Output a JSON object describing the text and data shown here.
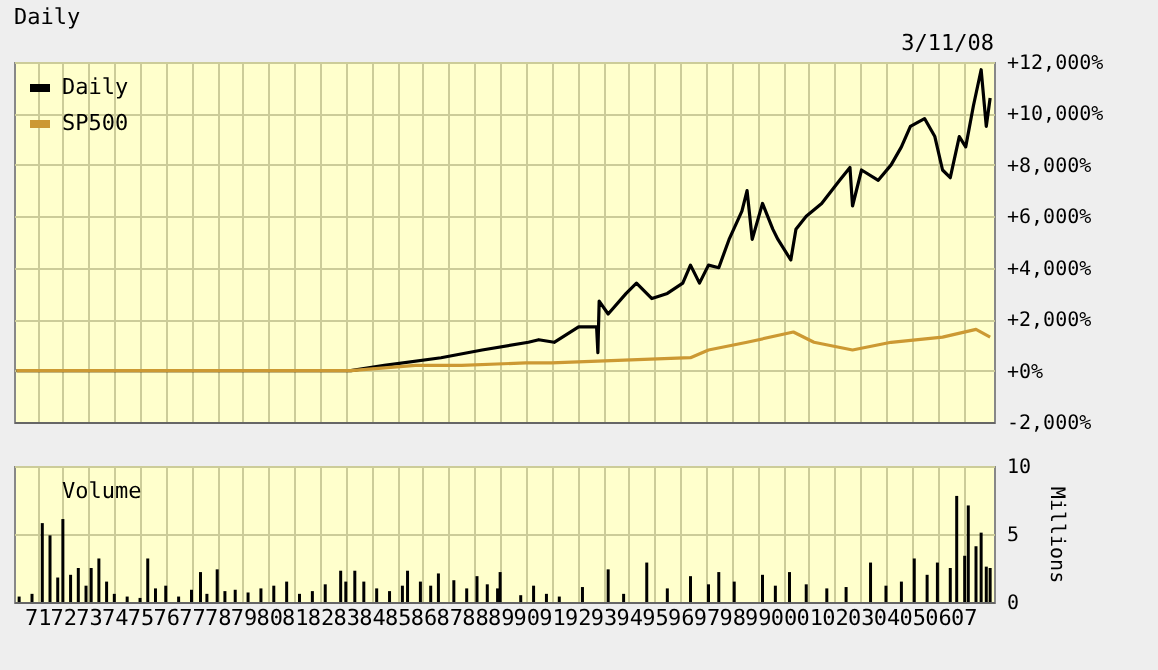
{
  "chart_data": [
    {
      "type": "line",
      "title": "Daily",
      "annotations": [
        "3/11/08"
      ],
      "series": [
        {
          "name": "Daily",
          "color": "#000000",
          "x": [
            1970.2,
            1972.0,
            1974.0,
            1976.0,
            1978.0,
            1980.0,
            1982.0,
            1983.2,
            1984.5,
            1986.7,
            1988.3,
            1990.1,
            1990.5,
            1991.1,
            1992.05,
            1992.75,
            1992.8,
            1992.85,
            1993.2,
            1993.9,
            1994.3,
            1994.9,
            1995.5,
            1996.1,
            1996.4,
            1996.75,
            1997.1,
            1997.5,
            1997.9,
            1998.4,
            1998.6,
            1998.8,
            1999.2,
            1999.6,
            1999.8,
            2000.3,
            2000.5,
            2000.9,
            2001.5,
            2002.2,
            2002.6,
            2002.7,
            2003.05,
            2003.7,
            2004.2,
            2004.6,
            2004.95,
            2005.5,
            2005.9,
            2006.2,
            2006.5,
            2006.85,
            2007.1,
            2007.4,
            2007.7,
            2007.9,
            2008.05
          ],
          "values": [
            0,
            0,
            0,
            0,
            0,
            0,
            0,
            0,
            200,
            500,
            800,
            1100,
            1200,
            1100,
            1700,
            1700,
            700,
            2700,
            2200,
            3000,
            3400,
            2800,
            3000,
            3400,
            4100,
            3400,
            4100,
            4000,
            5100,
            6200,
            7000,
            5100,
            6500,
            5500,
            5100,
            4300,
            5500,
            6000,
            6500,
            7400,
            7900,
            6400,
            7800,
            7400,
            8000,
            8700,
            9500,
            9800,
            9100,
            7800,
            7500,
            9100,
            8700,
            10300,
            11700,
            9500,
            10600
          ]
        },
        {
          "name": "SP500",
          "color": "#cc9933",
          "x": [
            1970.2,
            1972.0,
            1974.0,
            1976.0,
            1978.0,
            1980.0,
            1982.0,
            1983.2,
            1985.7,
            1987.5,
            1990.0,
            1991.0,
            1996.4,
            1997.1,
            1998.6,
            2000.4,
            2001.2,
            2002.7,
            2004.2,
            2006.2,
            2007.5,
            2008.05
          ],
          "values": [
            0,
            0,
            0,
            0,
            0,
            0,
            0,
            0,
            200,
            200,
            300,
            300,
            500,
            800,
            1100,
            1500,
            1100,
            800,
            1100,
            1300,
            1600,
            1300
          ]
        }
      ],
      "xlim": [
        1970.1,
        2008.2
      ],
      "xticks": [
        1971,
        1972,
        1973,
        1974,
        1975,
        1976,
        1977,
        1978,
        1979,
        1980,
        1981,
        1982,
        1983,
        1984,
        1985,
        1986,
        1987,
        1988,
        1989,
        1990,
        1991,
        1992,
        1993,
        1994,
        1995,
        1996,
        1997,
        1998,
        1999,
        2000,
        2001,
        2002,
        2003,
        2004,
        2005,
        2006,
        2007
      ],
      "ylim": [
        -2000,
        12000
      ],
      "yticks": [
        {
          "value": -2000,
          "label": "-2,000%"
        },
        {
          "value": 0,
          "label": "+0%"
        },
        {
          "value": 2000,
          "label": "+2,000%"
        },
        {
          "value": 4000,
          "label": "+4,000%"
        },
        {
          "value": 6000,
          "label": "+6,000%"
        },
        {
          "value": 8000,
          "label": "+8,000%"
        },
        {
          "value": 10000,
          "label": "+10,000%"
        },
        {
          "value": 12000,
          "label": "+12,000%"
        }
      ],
      "grid": true,
      "legend": "top left",
      "tick_labels": "y"
    },
    {
      "type": "bar",
      "ylabel": "Millions",
      "series": [
        {
          "name": "Volume",
          "color": "#000000",
          "x": [
            1970.3,
            1970.8,
            1971.2,
            1971.5,
            1971.8,
            1972.0,
            1972.3,
            1972.6,
            1972.9,
            1973.1,
            1973.4,
            1973.7,
            1974.0,
            1974.5,
            1975.0,
            1975.3,
            1975.6,
            1976.0,
            1976.5,
            1977.0,
            1977.35,
            1977.6,
            1978.0,
            1978.3,
            1978.7,
            1979.2,
            1979.7,
            1980.2,
            1980.7,
            1981.2,
            1981.7,
            1982.2,
            1982.8,
            1983.0,
            1983.35,
            1983.7,
            1984.2,
            1984.7,
            1985.2,
            1985.4,
            1985.9,
            1986.3,
            1986.6,
            1987.2,
            1987.7,
            1988.1,
            1988.5,
            1988.9,
            1989.0,
            1989.8,
            1990.3,
            1990.8,
            1991.3,
            1992.2,
            1993.2,
            1993.8,
            1994.7,
            1995.5,
            1996.4,
            1997.1,
            1997.5,
            1998.1,
            1999.2,
            1999.7,
            2000.25,
            2000.9,
            2001.7,
            2002.45,
            2003.4,
            2004.0,
            2004.6,
            2005.1,
            2005.6,
            2006.0,
            2006.5,
            2006.75,
            2007.06,
            2007.2,
            2007.5,
            2007.7,
            2007.9,
            2008.05
          ],
          "values": [
            0.4,
            0.6,
            5.8,
            4.9,
            1.8,
            6.1,
            2.0,
            2.5,
            1.2,
            2.5,
            3.2,
            1.5,
            0.6,
            0.4,
            0.3,
            3.2,
            1.0,
            1.2,
            0.4,
            0.9,
            2.2,
            0.6,
            2.4,
            0.8,
            0.9,
            0.7,
            1.0,
            1.2,
            1.5,
            0.6,
            0.8,
            1.3,
            2.3,
            1.5,
            2.3,
            1.5,
            1.0,
            0.8,
            1.2,
            2.3,
            1.5,
            1.2,
            2.1,
            1.6,
            1.0,
            1.9,
            1.3,
            1.0,
            2.2,
            0.5,
            1.2,
            0.6,
            0.4,
            1.1,
            2.4,
            0.6,
            2.9,
            1.0,
            1.9,
            1.3,
            2.2,
            1.5,
            2.0,
            1.2,
            2.2,
            1.3,
            1.0,
            1.1,
            2.9,
            1.2,
            1.5,
            3.2,
            2.0,
            2.9,
            2.5,
            7.8,
            3.4,
            7.1,
            4.1,
            5.1,
            2.6,
            2.5
          ]
        }
      ],
      "xlim": [
        1970.1,
        2008.2
      ],
      "xticks": [
        {
          "value": 1971,
          "label": "71"
        },
        {
          "value": 1972,
          "label": "72"
        },
        {
          "value": 1973,
          "label": "73"
        },
        {
          "value": 1974,
          "label": "74"
        },
        {
          "value": 1975,
          "label": "75"
        },
        {
          "value": 1976,
          "label": "76"
        },
        {
          "value": 1977,
          "label": "77"
        },
        {
          "value": 1978,
          "label": "78"
        },
        {
          "value": 1979,
          "label": "79"
        },
        {
          "value": 1980,
          "label": "80"
        },
        {
          "value": 1981,
          "label": "81"
        },
        {
          "value": 1982,
          "label": "82"
        },
        {
          "value": 1983,
          "label": "83"
        },
        {
          "value": 1984,
          "label": "84"
        },
        {
          "value": 1985,
          "label": "85"
        },
        {
          "value": 1986,
          "label": "86"
        },
        {
          "value": 1987,
          "label": "87"
        },
        {
          "value": 1988,
          "label": "88"
        },
        {
          "value": 1989,
          "label": "89"
        },
        {
          "value": 1990,
          "label": "90"
        },
        {
          "value": 1991,
          "label": "91"
        },
        {
          "value": 1992,
          "label": "92"
        },
        {
          "value": 1993,
          "label": "93"
        },
        {
          "value": 1994,
          "label": "94"
        },
        {
          "value": 1995,
          "label": "95"
        },
        {
          "value": 1996,
          "label": "96"
        },
        {
          "value": 1997,
          "label": "97"
        },
        {
          "value": 1998,
          "label": "98"
        },
        {
          "value": 1999,
          "label": "99"
        },
        {
          "value": 2000,
          "label": "00"
        },
        {
          "value": 2001,
          "label": "01"
        },
        {
          "value": 2002,
          "label": "02"
        },
        {
          "value": 2003,
          "label": "03"
        },
        {
          "value": 2004,
          "label": "04"
        },
        {
          "value": 2005,
          "label": "05"
        },
        {
          "value": 2006,
          "label": "06"
        },
        {
          "value": 2007,
          "label": "07"
        }
      ],
      "ylim": [
        0,
        10
      ],
      "yticks": [
        0,
        5,
        10
      ],
      "grid": true,
      "legend": "top left"
    }
  ]
}
